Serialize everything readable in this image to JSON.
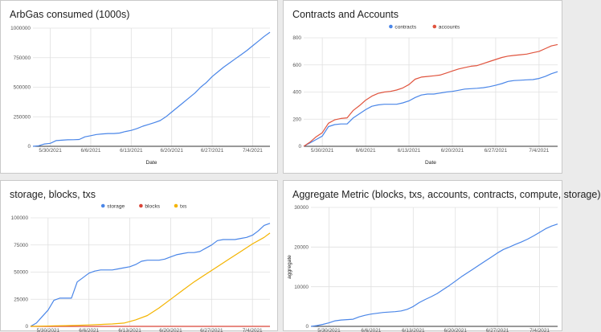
{
  "chart_data": [
    {
      "type": "line",
      "title": "ArbGas consumed (1000s)",
      "xlabel": "Date",
      "ylabel": "",
      "x_ticks": [
        "5/30/2021",
        "6/6/2021",
        "6/13/2021",
        "6/20/2021",
        "6/27/2021",
        "7/4/2021"
      ],
      "y_ticks": [
        "0",
        "250000",
        "500000",
        "750000",
        "1000000"
      ],
      "ylim": [
        0,
        1000000
      ],
      "grid": true,
      "legend": "none",
      "series": [
        {
          "name": "",
          "color": "#4a86e8",
          "x": [
            0,
            1,
            2,
            3,
            4,
            5,
            6,
            7,
            8,
            9,
            10,
            11,
            12,
            13,
            14,
            15,
            16,
            17,
            18,
            19,
            20,
            21,
            22,
            23,
            24,
            25,
            26,
            27,
            28,
            29,
            30,
            31,
            32,
            33,
            34,
            35,
            36,
            37,
            38,
            39,
            40,
            41
          ],
          "values": [
            0,
            5000,
            20000,
            25000,
            48000,
            52000,
            55000,
            56000,
            58000,
            80000,
            90000,
            100000,
            105000,
            108000,
            108000,
            112000,
            125000,
            135000,
            150000,
            170000,
            185000,
            200000,
            218000,
            250000,
            290000,
            330000,
            370000,
            410000,
            450000,
            500000,
            540000,
            590000,
            630000,
            670000,
            705000,
            740000,
            775000,
            810000,
            850000,
            890000,
            930000,
            965000
          ]
        }
      ]
    },
    {
      "type": "line",
      "title": "Contracts and Accounts",
      "xlabel": "Date",
      "ylabel": "",
      "x_ticks": [
        "5/30/2021",
        "6/6/2021",
        "6/13/2021",
        "6/20/2021",
        "6/27/2021",
        "7/4/2021"
      ],
      "y_ticks": [
        "0",
        "200",
        "400",
        "600",
        "800"
      ],
      "ylim": [
        0,
        800
      ],
      "grid": true,
      "legend": "top-center",
      "series": [
        {
          "name": "contracts",
          "color": "#4a86e8",
          "x": [
            0,
            1,
            2,
            3,
            4,
            5,
            6,
            7,
            8,
            9,
            10,
            11,
            12,
            13,
            14,
            15,
            16,
            17,
            18,
            19,
            20,
            21,
            22,
            23,
            24,
            25,
            26,
            27,
            28,
            29,
            30,
            31,
            32,
            33,
            34,
            35,
            36,
            37,
            38,
            39,
            40,
            41
          ],
          "values": [
            0,
            25,
            50,
            75,
            145,
            160,
            165,
            165,
            210,
            240,
            270,
            295,
            305,
            310,
            310,
            310,
            320,
            335,
            360,
            378,
            385,
            385,
            392,
            400,
            405,
            413,
            422,
            425,
            428,
            432,
            440,
            450,
            462,
            478,
            485,
            487,
            490,
            492,
            500,
            515,
            535,
            550
          ]
        },
        {
          "name": "accounts",
          "color": "#e0543e",
          "x": [
            0,
            1,
            2,
            3,
            4,
            5,
            6,
            7,
            8,
            9,
            10,
            11,
            12,
            13,
            14,
            15,
            16,
            17,
            18,
            19,
            20,
            21,
            22,
            23,
            24,
            25,
            26,
            27,
            28,
            29,
            30,
            31,
            32,
            33,
            34,
            35,
            36,
            37,
            38,
            39,
            40,
            41
          ],
          "values": [
            0,
            30,
            70,
            100,
            170,
            195,
            205,
            210,
            265,
            300,
            340,
            370,
            390,
            400,
            405,
            415,
            430,
            455,
            495,
            510,
            515,
            520,
            525,
            540,
            555,
            570,
            580,
            590,
            595,
            610,
            625,
            640,
            655,
            665,
            670,
            675,
            680,
            690,
            700,
            720,
            740,
            750
          ]
        }
      ]
    },
    {
      "type": "line",
      "title": "storage, blocks, txs",
      "xlabel": "",
      "ylabel": "",
      "x_ticks": [
        "5/30/2021",
        "6/6/2021",
        "6/13/2021",
        "6/20/2021",
        "6/27/2021",
        "7/4/2021"
      ],
      "y_ticks": [
        "0",
        "25000",
        "50000",
        "75000",
        "100000"
      ],
      "ylim": [
        0,
        100000
      ],
      "grid": true,
      "legend": "top-center",
      "series": [
        {
          "name": "storage",
          "color": "#4a86e8",
          "x": [
            0,
            1,
            2,
            3,
            4,
            5,
            6,
            7,
            8,
            9,
            10,
            11,
            12,
            13,
            14,
            15,
            16,
            17,
            18,
            19,
            20,
            21,
            22,
            23,
            24,
            25,
            26,
            27,
            28,
            29,
            30,
            31,
            32,
            33,
            34,
            35,
            36,
            37,
            38,
            39,
            40,
            41
          ],
          "values": [
            0,
            3000,
            9000,
            15000,
            24000,
            26000,
            26000,
            26000,
            41000,
            45000,
            49000,
            51000,
            52000,
            52000,
            52000,
            53000,
            54000,
            55000,
            57000,
            60000,
            61000,
            61000,
            61000,
            62000,
            64000,
            66000,
            67000,
            68000,
            68000,
            69000,
            72000,
            75000,
            79000,
            80000,
            80000,
            80000,
            81000,
            82000,
            84000,
            88000,
            93000,
            95000
          ]
        },
        {
          "name": "blocks",
          "color": "#db4437",
          "x": [
            0,
            41
          ],
          "values": [
            0,
            0
          ]
        },
        {
          "name": "txs",
          "color": "#f4b400",
          "x": [
            0,
            2,
            4,
            6,
            8,
            10,
            12,
            14,
            16,
            18,
            20,
            22,
            24,
            26,
            28,
            30,
            32,
            34,
            36,
            38,
            40,
            41
          ],
          "values": [
            0,
            200,
            500,
            700,
            1000,
            1300,
            1800,
            2200,
            3000,
            6000,
            10000,
            17000,
            25000,
            33000,
            41000,
            48000,
            55000,
            62000,
            69000,
            76000,
            82000,
            86000
          ]
        }
      ]
    },
    {
      "type": "line",
      "title": "Aggregate Metric (blocks, txs, accounts, contracts, compute, storage)",
      "xlabel": "",
      "ylabel": "aggregate",
      "x_ticks": [
        "5/30/2021",
        "6/6/2021",
        "6/13/2021",
        "6/20/2021",
        "6/27/2021",
        "7/4/2021"
      ],
      "y_ticks": [
        "0",
        "10000",
        "20000",
        "30000"
      ],
      "ylim": [
        0,
        30000
      ],
      "grid": true,
      "legend": "none",
      "series": [
        {
          "name": "",
          "color": "#4a86e8",
          "x": [
            0,
            1,
            2,
            3,
            4,
            5,
            6,
            7,
            8,
            9,
            10,
            11,
            12,
            13,
            14,
            15,
            16,
            17,
            18,
            19,
            20,
            21,
            22,
            23,
            24,
            25,
            26,
            27,
            28,
            29,
            30,
            31,
            32,
            33,
            34,
            35,
            36,
            37,
            38,
            39,
            40,
            41
          ],
          "values": [
            0,
            200,
            500,
            900,
            1400,
            1600,
            1700,
            1800,
            2400,
            2800,
            3100,
            3300,
            3500,
            3600,
            3700,
            3900,
            4300,
            5000,
            6000,
            6800,
            7500,
            8300,
            9300,
            10300,
            11400,
            12500,
            13500,
            14500,
            15500,
            16500,
            17500,
            18500,
            19400,
            20000,
            20700,
            21300,
            22000,
            22800,
            23700,
            24600,
            25300,
            25800
          ]
        }
      ]
    }
  ]
}
